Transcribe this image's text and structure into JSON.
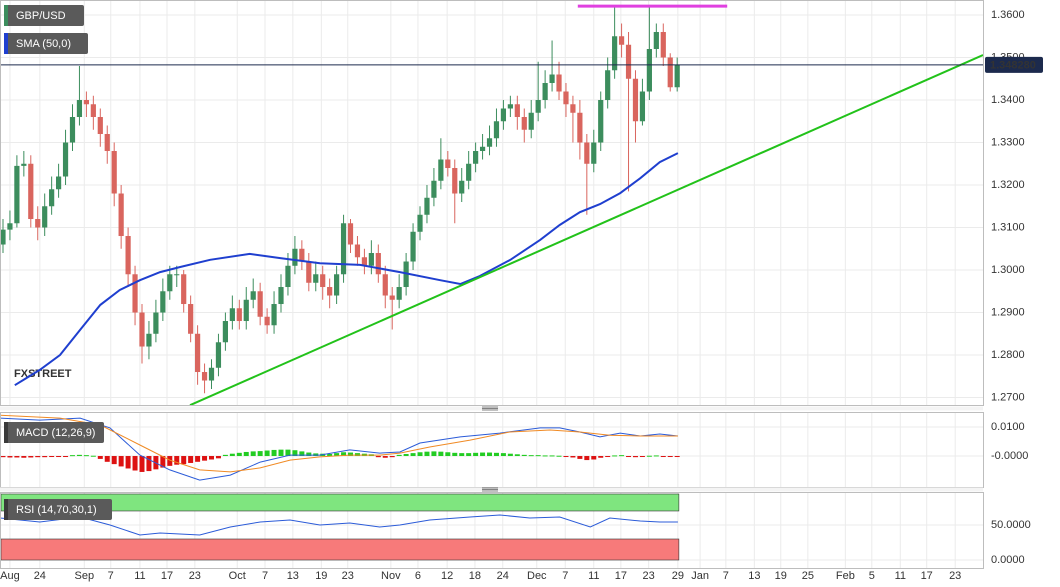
{
  "chart_data": [
    {
      "type": "candlestick",
      "candles": {
        "name": "GBP/USD",
        "legend_color": "#3c8d5d",
        "up_color": "#3c8d5d",
        "down_color": "#d9655e",
        "open": [
          1.306,
          1.3095,
          1.311,
          1.3245,
          1.325,
          1.312,
          1.31,
          1.315,
          1.319,
          1.322,
          1.33,
          1.336,
          1.34,
          1.339,
          1.336,
          1.332,
          1.328,
          1.318,
          1.308,
          1.299,
          1.29,
          1.282,
          1.285,
          1.29,
          1.295,
          1.299,
          1.299,
          1.292,
          1.285,
          1.276,
          1.274,
          1.277,
          1.283,
          1.288,
          1.291,
          1.288,
          1.293,
          1.295,
          1.289,
          1.287,
          1.292,
          1.296,
          1.301,
          1.305,
          1.302,
          1.297,
          1.299,
          1.296,
          1.294,
          1.299,
          1.311,
          1.306,
          1.303,
          1.301,
          1.304,
          1.299,
          1.294,
          1.293,
          1.296,
          1.302,
          1.309,
          1.313,
          1.317,
          1.321,
          1.326,
          1.324,
          1.318,
          1.321,
          1.325,
          1.328,
          1.329,
          1.331,
          1.335,
          1.338,
          1.339,
          1.336,
          1.333,
          1.337,
          1.34,
          1.344,
          1.346,
          1.342,
          1.339,
          1.337,
          1.33,
          1.325,
          1.33,
          1.34,
          1.347,
          1.355,
          1.353,
          1.345,
          1.335,
          1.342,
          1.352,
          1.356,
          1.35,
          1.343
        ],
        "high": [
          1.312,
          1.314,
          1.327,
          1.328,
          1.327,
          1.315,
          1.318,
          1.322,
          1.325,
          1.333,
          1.339,
          1.348,
          1.342,
          1.341,
          1.338,
          1.334,
          1.33,
          1.32,
          1.31,
          1.301,
          1.292,
          1.288,
          1.293,
          1.298,
          1.301,
          1.301,
          1.3,
          1.294,
          1.287,
          1.278,
          1.279,
          1.285,
          1.29,
          1.294,
          1.293,
          1.296,
          1.298,
          1.297,
          1.291,
          1.295,
          1.299,
          1.304,
          1.308,
          1.307,
          1.304,
          1.302,
          1.301,
          1.298,
          1.301,
          1.313,
          1.312,
          1.308,
          1.305,
          1.307,
          1.306,
          1.301,
          1.296,
          1.299,
          1.304,
          1.311,
          1.315,
          1.32,
          1.324,
          1.331,
          1.328,
          1.326,
          1.324,
          1.328,
          1.33,
          1.332,
          1.334,
          1.338,
          1.34,
          1.341,
          1.341,
          1.338,
          1.34,
          1.349,
          1.347,
          1.354,
          1.349,
          1.344,
          1.341,
          1.34,
          1.332,
          1.333,
          1.342,
          1.35,
          1.362,
          1.358,
          1.356,
          1.347,
          1.345,
          1.362,
          1.358,
          1.358,
          1.351,
          1.35
        ],
        "low": [
          1.304,
          1.307,
          1.31,
          1.322,
          1.31,
          1.307,
          1.308,
          1.313,
          1.317,
          1.32,
          1.328,
          1.334,
          1.336,
          1.333,
          1.329,
          1.325,
          1.315,
          1.305,
          1.296,
          1.287,
          1.278,
          1.279,
          1.283,
          1.288,
          1.293,
          1.296,
          1.29,
          1.283,
          1.273,
          1.271,
          1.272,
          1.275,
          1.281,
          1.286,
          1.286,
          1.286,
          1.291,
          1.287,
          1.285,
          1.285,
          1.29,
          1.294,
          1.299,
          1.3,
          1.295,
          1.295,
          1.293,
          1.291,
          1.292,
          1.297,
          1.304,
          1.301,
          1.299,
          1.299,
          1.297,
          1.291,
          1.286,
          1.291,
          1.294,
          1.3,
          1.307,
          1.311,
          1.315,
          1.319,
          1.322,
          1.311,
          1.316,
          1.319,
          1.323,
          1.326,
          1.327,
          1.329,
          1.333,
          1.336,
          1.333,
          1.33,
          1.331,
          1.335,
          1.338,
          1.342,
          1.34,
          1.336,
          1.33,
          1.326,
          1.313,
          1.323,
          1.328,
          1.338,
          1.345,
          1.35,
          1.3185,
          1.33,
          1.334,
          1.34,
          1.35,
          1.348,
          1.342,
          1.342
        ],
        "close": [
          1.3095,
          1.311,
          1.3245,
          1.325,
          1.312,
          1.31,
          1.315,
          1.319,
          1.322,
          1.33,
          1.336,
          1.34,
          1.339,
          1.336,
          1.332,
          1.328,
          1.318,
          1.308,
          1.299,
          1.29,
          1.282,
          1.285,
          1.29,
          1.295,
          1.299,
          1.299,
          1.292,
          1.285,
          1.276,
          1.274,
          1.277,
          1.283,
          1.288,
          1.291,
          1.288,
          1.293,
          1.295,
          1.289,
          1.287,
          1.292,
          1.296,
          1.301,
          1.305,
          1.302,
          1.297,
          1.299,
          1.296,
          1.294,
          1.299,
          1.311,
          1.306,
          1.303,
          1.301,
          1.304,
          1.299,
          1.294,
          1.293,
          1.296,
          1.302,
          1.309,
          1.313,
          1.317,
          1.321,
          1.326,
          1.324,
          1.318,
          1.321,
          1.325,
          1.328,
          1.329,
          1.331,
          1.335,
          1.338,
          1.339,
          1.336,
          1.333,
          1.337,
          1.34,
          1.344,
          1.346,
          1.342,
          1.339,
          1.337,
          1.33,
          1.325,
          1.33,
          1.34,
          1.347,
          1.355,
          1.353,
          1.345,
          1.335,
          1.342,
          1.352,
          1.356,
          1.35,
          1.343,
          1.3483
        ]
      },
      "series": [
        {
          "name": "SMA (50,0)",
          "color": "#1f3fcf",
          "x": [
            1.7,
            5.3,
            8.2,
            11.1,
            14.0,
            16.8,
            19.7,
            22.6,
            25.5,
            29.8,
            35.5,
            39.9,
            45.6,
            51.4,
            57.1,
            62.9,
            65.8,
            68.6,
            73.0,
            77.3,
            80.1,
            83.0,
            85.9,
            88.8,
            91.7,
            94.5,
            97.1
          ],
          "values": [
            1.2729,
            1.2765,
            1.28,
            1.2859,
            1.2918,
            1.2953,
            1.2976,
            1.2995,
            1.3007,
            1.3024,
            1.3038,
            1.3028,
            1.3016,
            1.3012,
            1.2995,
            1.2976,
            1.2967,
            1.2986,
            1.3024,
            1.3071,
            1.3106,
            1.3136,
            1.3155,
            1.3181,
            1.3216,
            1.3254,
            1.3275
          ]
        }
      ],
      "trendline": {
        "color": "#22c21a",
        "x": [
          26.9,
          141.0
        ],
        "values": [
          1.2682,
          1.3506
        ]
      },
      "resistance": {
        "color": "#e040e0",
        "x": [
          82.7,
          104.2
        ],
        "values": [
          1.3621,
          1.3621
        ]
      },
      "current_price": {
        "value": 1.34828,
        "label": "1.348280",
        "color": "#1c2a4d"
      },
      "watermark": [
        "FX",
        "STREET"
      ],
      "ylim": [
        1.26824,
        1.36353
      ],
      "yticks": [
        {
          "value": 1.36,
          "label": "1.3600"
        },
        {
          "value": 1.35,
          "label": "1.3500"
        },
        {
          "value": 1.34,
          "label": "1.3400"
        },
        {
          "value": 1.33,
          "label": "1.3300"
        },
        {
          "value": 1.32,
          "label": "1.3200"
        },
        {
          "value": 1.31,
          "label": "1.3100"
        },
        {
          "value": 1.3,
          "label": "1.3000"
        },
        {
          "value": 1.29,
          "label": "1.2900"
        },
        {
          "value": 1.28,
          "label": "1.2800"
        },
        {
          "value": 1.27,
          "label": "1.2700"
        }
      ],
      "grid": true
    },
    {
      "type": "macd",
      "name": "MACD (12,26,9)",
      "histogram": {
        "up_color": "#22cc22",
        "down_color": "#dd1111",
        "values": [
          -0.0004,
          -0.0005,
          -0.0005,
          -0.0006,
          -0.0005,
          -0.0004,
          -0.0004,
          -0.0003,
          -0.0002,
          -0.0003,
          0.0003,
          0.0004,
          0.0003,
          0.0001,
          -0.001,
          -0.002,
          -0.0028,
          -0.0036,
          -0.0043,
          -0.005,
          -0.0055,
          -0.0052,
          -0.0046,
          -0.004,
          -0.0034,
          -0.003,
          -0.0028,
          -0.0024,
          -0.002,
          -0.0016,
          -0.0012,
          -0.0008,
          0.0004,
          0.0008,
          0.0011,
          0.0014,
          0.0016,
          0.0017,
          0.0019,
          0.0021,
          0.0022,
          0.0022,
          0.002,
          0.0016,
          0.0012,
          0.0009,
          0.0008,
          0.0007,
          0.001,
          0.0013,
          0.0012,
          0.001,
          0.0008,
          0.0006,
          -0.0004,
          -0.0006,
          -0.0004,
          0.0004,
          0.0007,
          0.001,
          0.0013,
          0.0015,
          0.0016,
          0.0015,
          0.0013,
          0.0011,
          0.001,
          0.001,
          0.0011,
          0.0012,
          0.0012,
          0.0011,
          0.001,
          0.0008,
          0.0006,
          0.0004,
          0.0003,
          0.0003,
          0.0002,
          0.0002,
          0.0001,
          -0.0002,
          -0.0005,
          -0.001,
          -0.0014,
          -0.0012,
          -0.0006,
          -0.0002,
          0.0002,
          0.0003,
          -0.0002,
          -0.0004,
          -0.0002,
          0.0001,
          0.0002,
          -0.0001,
          -0.0003,
          -0.0001
        ]
      },
      "series": [
        {
          "color": "#2b5bd8",
          "x": [
            -0.4,
            5.3,
            11.1,
            15.4,
            19.7,
            24.0,
            28.3,
            32.7,
            37.0,
            41.3,
            45.6,
            49.9,
            54.2,
            57.1,
            60.0,
            65.8,
            71.5,
            77.3,
            80.1,
            83.0,
            85.9,
            88.8,
            91.7,
            94.5,
            97.1
          ],
          "values": [
            0.0131,
            0.0124,
            0.0131,
            0.0097,
            0.0003,
            -0.0048,
            -0.0083,
            -0.0066,
            -0.0021,
            0.0003,
            0.0003,
            0.0021,
            0.001,
            0.0014,
            0.0045,
            0.0066,
            0.0079,
            0.0097,
            0.0097,
            0.0083,
            0.0066,
            0.0079,
            0.0069,
            0.0076,
            0.0069
          ]
        },
        {
          "color": "#f08a24",
          "x": [
            -0.4,
            8.2,
            14.0,
            19.7,
            24.0,
            28.3,
            32.7,
            37.0,
            41.3,
            45.6,
            49.9,
            54.2,
            57.1,
            61.4,
            67.2,
            72.9,
            78.7,
            83.0,
            87.3,
            91.7,
            97.1
          ],
          "values": [
            0.0141,
            0.0131,
            0.0107,
            0.0038,
            -0.0014,
            -0.0048,
            -0.0055,
            -0.0041,
            -0.0014,
            -0.0003,
            0.0003,
            0.0003,
            0.001,
            0.0031,
            0.0055,
            0.0083,
            0.009,
            0.0083,
            0.0072,
            0.0069,
            0.0069
          ]
        }
      ],
      "ylim": [
        -0.0107,
        0.0152
      ],
      "yticks": [
        {
          "value": 0.01,
          "label": "0.0100"
        },
        {
          "value": 0,
          "label": "-0.0000"
        }
      ]
    },
    {
      "type": "rsi",
      "name": "RSI (14,70,30,1)",
      "overbought": {
        "value": 70,
        "color": "#7fe57f"
      },
      "oversold": {
        "value": 30,
        "color": "#f77a7a"
      },
      "series": [
        {
          "color": "#2b5bd8",
          "x": [
            -0.4,
            5.3,
            11.1,
            15.4,
            19.7,
            22.6,
            28.3,
            32.7,
            37.0,
            41.3,
            45.6,
            49.9,
            54.2,
            57.1,
            61.4,
            67.2,
            71.5,
            75.8,
            80.1,
            84.5,
            87.3,
            91.7,
            94.5,
            97.1
          ],
          "values": [
            60.0,
            54.3,
            61.4,
            50.0,
            35.7,
            38.6,
            35.7,
            47.1,
            54.3,
            57.1,
            50.0,
            52.9,
            47.1,
            50.0,
            57.1,
            61.4,
            64.3,
            60.0,
            61.4,
            47.1,
            60.0,
            55.7,
            54.3,
            54.3
          ]
        }
      ],
      "ylim": [
        -11.4,
        97.1
      ],
      "yticks": [
        {
          "value": 50,
          "label": "50.0000"
        },
        {
          "value": 0,
          "label": "0.0000"
        }
      ],
      "xlim": [
        -0.43,
        141.0
      ],
      "xticks": [
        {
          "value": 1.0,
          "label": "Aug"
        },
        {
          "value": 5.3,
          "label": "24"
        },
        {
          "value": 11.7,
          "label": "Sep"
        },
        {
          "value": 15.5,
          "label": "7"
        },
        {
          "value": 19.7,
          "label": "11"
        },
        {
          "value": 23.6,
          "label": "17"
        },
        {
          "value": 27.6,
          "label": "23"
        },
        {
          "value": 33.7,
          "label": "Oct"
        },
        {
          "value": 37.7,
          "label": "7"
        },
        {
          "value": 41.7,
          "label": "13"
        },
        {
          "value": 45.8,
          "label": "19"
        },
        {
          "value": 49.6,
          "label": "23"
        },
        {
          "value": 55.8,
          "label": "Nov"
        },
        {
          "value": 59.7,
          "label": "6"
        },
        {
          "value": 63.9,
          "label": "12"
        },
        {
          "value": 67.9,
          "label": "18"
        },
        {
          "value": 71.9,
          "label": "24"
        },
        {
          "value": 76.8,
          "label": "Dec"
        },
        {
          "value": 80.9,
          "label": "7"
        },
        {
          "value": 85.0,
          "label": "11"
        },
        {
          "value": 88.9,
          "label": "17"
        },
        {
          "value": 92.9,
          "label": "23"
        },
        {
          "value": 97.1,
          "label": "29"
        },
        {
          "value": 100.3,
          "label": "Jan"
        },
        {
          "value": 104.0,
          "label": "7"
        },
        {
          "value": 108.1,
          "label": "13"
        },
        {
          "value": 111.9,
          "label": "19"
        },
        {
          "value": 115.8,
          "label": "25"
        },
        {
          "value": 121.2,
          "label": "Feb"
        },
        {
          "value": 125.0,
          "label": "5"
        },
        {
          "value": 129.1,
          "label": "11"
        },
        {
          "value": 132.9,
          "label": "17"
        },
        {
          "value": 137.0,
          "label": "23"
        }
      ],
      "grid": true
    }
  ]
}
